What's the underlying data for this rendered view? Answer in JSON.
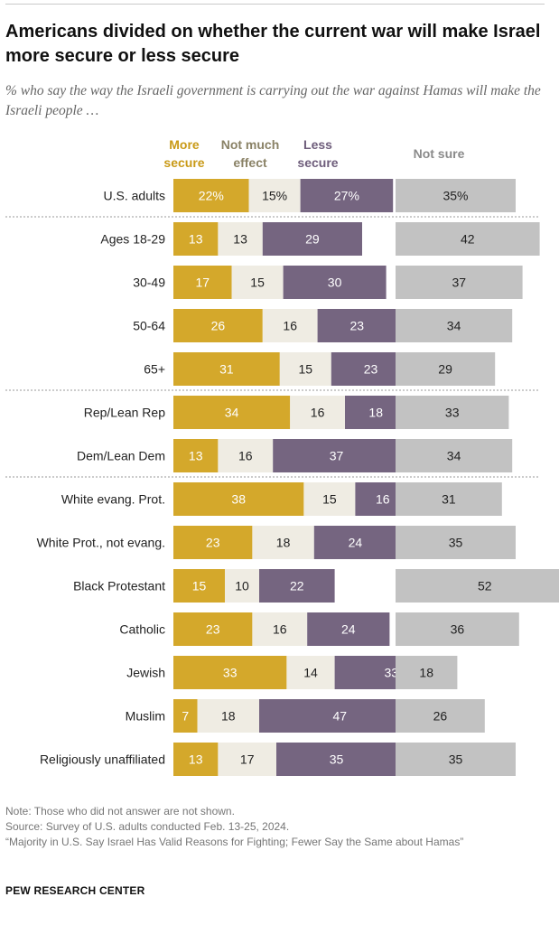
{
  "header": {
    "title": "Americans divided on whether the current war will make Israel more secure or less secure",
    "subtitle": "% who say the way the Israeli government is carrying out the war against Hamas will make the Israeli people …"
  },
  "notes": {
    "note": "Note: Those who did not answer are not shown.",
    "source": "Source: Survey of U.S. adults conducted Feb. 13-25, 2024.",
    "report": "“Majority in U.S. Say Israel Has Valid Reasons for Fighting; Fewer Say the Same about Hamas”"
  },
  "footer": {
    "org": "PEW RESEARCH CENTER"
  },
  "colors": {
    "more_secure": "#d4a82b",
    "not_much_effect": "#efece3",
    "less_secure": "#756580",
    "not_sure": "#c2c2c2",
    "more_header": "#c99a17",
    "not_much_header": "#8a8266",
    "less_header": "#6e5d7b",
    "not_sure_header": "#8a8a8a"
  },
  "chart_data": {
    "type": "bar",
    "orientation": "horizontal",
    "stacked": true,
    "title": "Americans divided on whether the current war will make Israel more secure or less secure",
    "series_labels": {
      "more_secure": [
        "More",
        "secure"
      ],
      "not_much_effect": [
        "Not much",
        "effect"
      ],
      "less_secure": [
        "Less",
        "secure"
      ],
      "not_sure": [
        "Not sure"
      ]
    },
    "rows": [
      {
        "label": "U.S. adults",
        "more_secure": 22,
        "not_much_effect": 15,
        "less_secure": 27,
        "not_sure": 35,
        "more_text": "22%",
        "effect_text": "15%",
        "less_text": "27%",
        "sure_text": "35%",
        "group_start": false
      },
      {
        "label": "Ages 18-29",
        "more_secure": 13,
        "not_much_effect": 13,
        "less_secure": 29,
        "not_sure": 42,
        "group_start": true
      },
      {
        "label": "30-49",
        "more_secure": 17,
        "not_much_effect": 15,
        "less_secure": 30,
        "not_sure": 37,
        "group_start": false
      },
      {
        "label": "50-64",
        "more_secure": 26,
        "not_much_effect": 16,
        "less_secure": 23,
        "not_sure": 34,
        "group_start": false
      },
      {
        "label": "65+",
        "more_secure": 31,
        "not_much_effect": 15,
        "less_secure": 23,
        "not_sure": 29,
        "group_start": false
      },
      {
        "label": "Rep/Lean Rep",
        "more_secure": 34,
        "not_much_effect": 16,
        "less_secure": 18,
        "not_sure": 33,
        "group_start": true
      },
      {
        "label": "Dem/Lean Dem",
        "more_secure": 13,
        "not_much_effect": 16,
        "less_secure": 37,
        "not_sure": 34,
        "group_start": false
      },
      {
        "label": "White evang. Prot.",
        "more_secure": 38,
        "not_much_effect": 15,
        "less_secure": 16,
        "not_sure": 31,
        "group_start": true
      },
      {
        "label": "White Prot., not evang.",
        "more_secure": 23,
        "not_much_effect": 18,
        "less_secure": 24,
        "not_sure": 35,
        "group_start": false
      },
      {
        "label": "Black Protestant",
        "more_secure": 15,
        "not_much_effect": 10,
        "less_secure": 22,
        "not_sure": 52,
        "group_start": false
      },
      {
        "label": "Catholic",
        "more_secure": 23,
        "not_much_effect": 16,
        "less_secure": 24,
        "not_sure": 36,
        "group_start": false
      },
      {
        "label": "Jewish",
        "more_secure": 33,
        "not_much_effect": 14,
        "less_secure": 33,
        "not_sure": 18,
        "group_start": false
      },
      {
        "label": "Muslim",
        "more_secure": 7,
        "not_much_effect": 18,
        "less_secure": 47,
        "not_sure": 26,
        "group_start": false
      },
      {
        "label": "Religiously unaffiliated",
        "more_secure": 13,
        "not_much_effect": 17,
        "less_secure": 35,
        "not_sure": 35,
        "group_start": false
      }
    ]
  }
}
